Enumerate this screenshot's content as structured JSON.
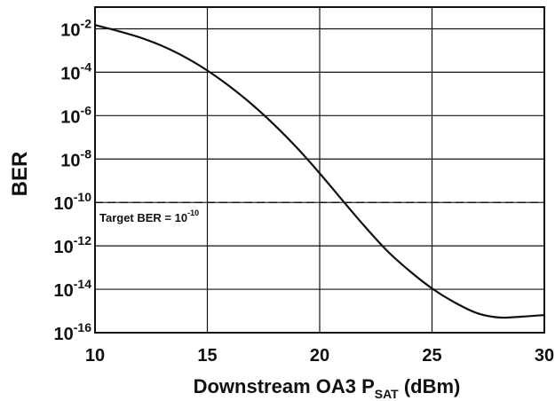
{
  "chart_data": {
    "type": "line",
    "title": "",
    "xlabel": {
      "text": "Downstream OA3 P",
      "sub": "SAT",
      "suffix": " (dBm)"
    },
    "ylabel": "BER",
    "xlim": [
      10,
      30
    ],
    "ylim": [
      1e-16,
      0.1
    ],
    "y_scale": "log",
    "grid": true,
    "x_ticks": [
      10,
      15,
      20,
      25,
      30
    ],
    "y_ticks": [
      {
        "value": 0.01,
        "base": "10",
        "exp": "-2"
      },
      {
        "value": 0.0001,
        "base": "10",
        "exp": "-4"
      },
      {
        "value": 1e-06,
        "base": "10",
        "exp": "-6"
      },
      {
        "value": 1e-08,
        "base": "10",
        "exp": "-8"
      },
      {
        "value": 1e-10,
        "base": "10",
        "exp": "-10"
      },
      {
        "value": 1e-12,
        "base": "10",
        "exp": "-12"
      },
      {
        "value": 1e-14,
        "base": "10",
        "exp": "-14"
      },
      {
        "value": 1e-16,
        "base": "10",
        "exp": "-16"
      }
    ],
    "series": [
      {
        "x": [
          10,
          11,
          12,
          13,
          14,
          15,
          16,
          17,
          18,
          19,
          20,
          21,
          22,
          23,
          24,
          25,
          26,
          27,
          28,
          29,
          30
        ],
        "y": [
          0.015,
          0.008,
          0.004,
          0.0016,
          0.0005,
          0.00012,
          2.2e-05,
          3.2e-06,
          3.6e-07,
          3.2e-08,
          2.2e-09,
          1.3e-10,
          8e-12,
          6e-13,
          7e-14,
          1.1e-14,
          2.5e-15,
          8e-16,
          5e-16,
          5.5e-16,
          6.5e-16
        ],
        "color": "#111111"
      }
    ],
    "reference_line": {
      "value": 1e-10,
      "style": "dashed"
    },
    "annotation": {
      "text": "Target BER = 10",
      "sup": "-10"
    }
  }
}
